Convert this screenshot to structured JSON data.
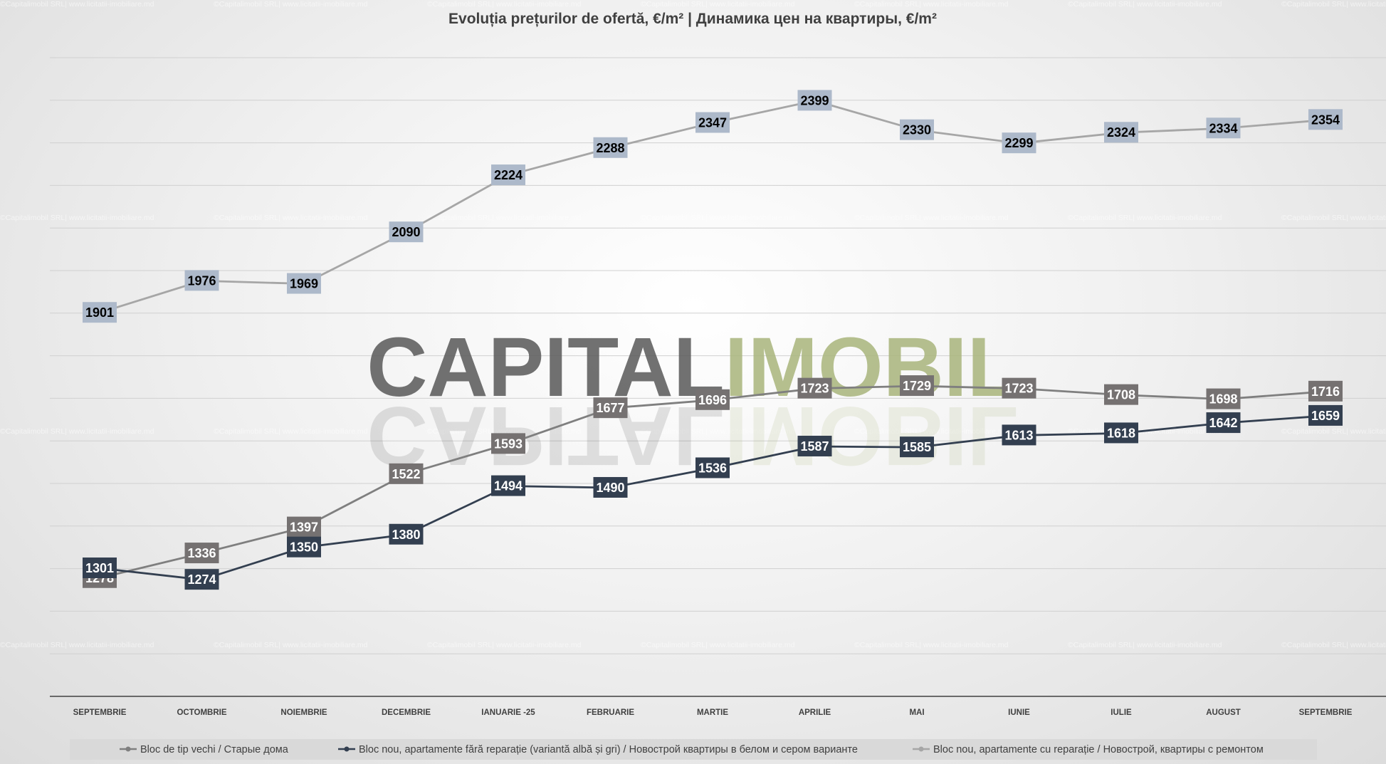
{
  "chart_data": {
    "type": "line",
    "title": "Evoluția prețurilor de ofertă, €/m²  |  Динамика цен на квартиры, €/m²",
    "categories": [
      "SEPTEMBRIE",
      "OCTOMBRIE",
      "NOIEMBRIE",
      "DECEMBRIE",
      "IANUARIE -25",
      "FEBRUARIE",
      "MARTIE",
      "APRILIE",
      "MAI",
      "IUNIE",
      "IULIE",
      "AUGUST",
      "SEPTEMBRIE"
    ],
    "ylim": [
      1000,
      2500
    ],
    "grid": true,
    "legend_position": "bottom",
    "series": [
      {
        "name": "Bloc de tip vechi / Старые дома",
        "color": "#7f7f7f",
        "label_color": "#757171",
        "label_text_color": "#ffffff",
        "values": [
          1278,
          1336,
          1397,
          1522,
          1593,
          1677,
          1696,
          1723,
          1729,
          1723,
          1708,
          1698,
          1716
        ]
      },
      {
        "name": "Bloc nou,  apartamente  fără  reparație  (variantă  albă  și gri)  / Новострой  квартиры  в белом и сером  варианте",
        "color": "#333f50",
        "label_color": "#333f50",
        "label_text_color": "#ffffff",
        "values": [
          1301,
          1274,
          1350,
          1380,
          1494,
          1490,
          1536,
          1587,
          1585,
          1613,
          1618,
          1642,
          1659
        ]
      },
      {
        "name": "Bloc nou,  apartamente  cu reparație / Новострой, квартиры  с ремонтом",
        "color": "#a6a6a6",
        "label_color": "#adb9ca",
        "label_text_color": "#000000",
        "values": [
          1901,
          1976,
          1969,
          2090,
          2224,
          2288,
          2347,
          2399,
          2330,
          2299,
          2324,
          2334,
          2354
        ]
      }
    ]
  },
  "watermark": {
    "brand_part1": "CAPITAL",
    "brand_part2": "IMOBIL",
    "brand_color1": "#595959",
    "brand_color2": "#a9b57c",
    "small_text": "©Capitalimobil SRL| www.licitatii-imobiliare.md"
  }
}
